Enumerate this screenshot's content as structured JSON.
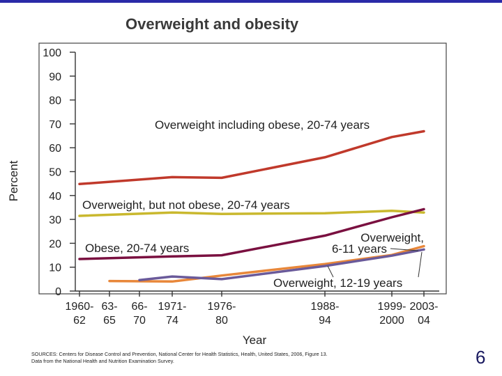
{
  "page": {
    "slide_number": "6",
    "source_note_line1": "SOURCES: Centers for Disease Control and Prevention, National Center for Health Statistics, Health, United States, 2006, Figure 13.",
    "source_note_line2": "Data from the National Health and Nutrition Examination Survey."
  },
  "colors": {
    "top_bar": "#2a2aa8",
    "overweight_including_obese": "#c0392b",
    "overweight_not_obese": "#c9b82e",
    "obese": "#7a1040",
    "overweight_6_11": "#e8873a",
    "overweight_12_19": "#6a5a9a"
  },
  "chart_data": {
    "type": "line",
    "title": "Overweight and obesity",
    "xlabel": "Year",
    "ylabel": "Percent",
    "ylim": [
      0,
      100
    ],
    "yticks": [
      "0",
      "10",
      "20",
      "30",
      "40",
      "50",
      "60",
      "70",
      "80",
      "90",
      "100"
    ],
    "x_ticks": [
      {
        "year": 1960,
        "line1": "1960-",
        "line2": "62"
      },
      {
        "year": 1963,
        "line1": "63-",
        "line2": "65"
      },
      {
        "year": 1966,
        "line1": "66-",
        "line2": "70"
      },
      {
        "year": 1971,
        "line1": "1971-",
        "line2": "74"
      },
      {
        "year": 1976,
        "line1": "1976-",
        "line2": "80"
      },
      {
        "year": 1988,
        "line1": "1988-",
        "line2": "94"
      },
      {
        "year": 1999,
        "line1": "1999-",
        "line2": "2000"
      },
      {
        "year": 2003,
        "line1": "2003-",
        "line2": "04"
      }
    ],
    "grid": false,
    "series": [
      {
        "name": "Overweight including obese, 20-74 years",
        "x": [
          1960,
          1971,
          1976,
          1988,
          1999,
          2003
        ],
        "y": [
          44.8,
          47.7,
          47.4,
          56.0,
          64.5,
          66.9
        ]
      },
      {
        "name": "Overweight, but not obese, 20-74 years",
        "x": [
          1960,
          1971,
          1976,
          1988,
          1999,
          2003
        ],
        "y": [
          31.5,
          32.9,
          32.3,
          32.6,
          33.6,
          32.9
        ]
      },
      {
        "name": "Obese, 20-74 years",
        "x": [
          1960,
          1971,
          1976,
          1988,
          1999,
          2003
        ],
        "y": [
          13.4,
          14.5,
          15.0,
          23.2,
          30.9,
          34.3
        ]
      },
      {
        "name": "Overweight, 6-11 years",
        "x": [
          1963,
          1971,
          1976,
          1988,
          1999,
          2003
        ],
        "y": [
          4.2,
          4.0,
          6.5,
          11.3,
          15.1,
          18.8
        ]
      },
      {
        "name": "Overweight, 12-19 years",
        "x": [
          1966,
          1971,
          1976,
          1988,
          1999,
          2003
        ],
        "y": [
          4.6,
          6.1,
          5.0,
          10.5,
          14.8,
          17.4
        ]
      }
    ]
  }
}
